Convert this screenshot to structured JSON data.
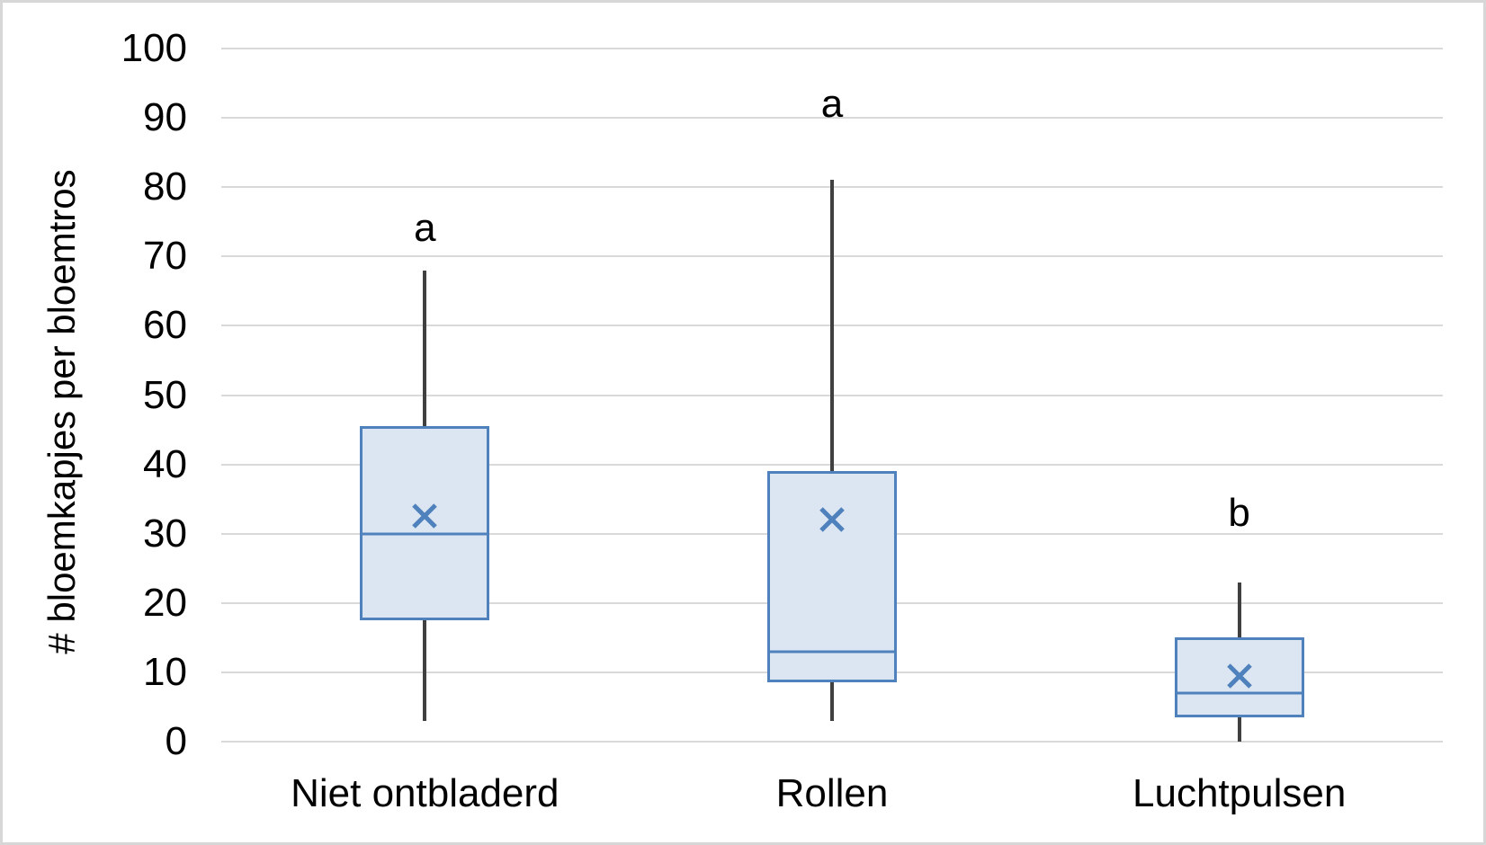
{
  "chart_data": {
    "type": "boxplot",
    "title": "",
    "xlabel": "",
    "ylabel": "# bloemkapjes per bloemtros",
    "ylim": [
      0,
      100
    ],
    "ytick_step": 10,
    "ytick_labels": [
      "0",
      "10",
      "20",
      "30",
      "40",
      "50",
      "60",
      "70",
      "80",
      "90",
      "100"
    ],
    "grid": true,
    "legend": false,
    "categories": [
      "Niet ontbladerd",
      "Rollen",
      "Luchtpulsen"
    ],
    "series": [
      {
        "category": "Niet ontbladerd",
        "min": 3,
        "q1": 17.5,
        "median": 30,
        "q3": 45.5,
        "max": 68,
        "mean": 32.5,
        "sig_label": "a",
        "sig_label_y": 74
      },
      {
        "category": "Rollen",
        "min": 3,
        "q1": 8.5,
        "median": 13,
        "q3": 39,
        "max": 81,
        "mean": 32,
        "sig_label": "a",
        "sig_label_y": 92
      },
      {
        "category": "Luchtpulsen",
        "min": 0,
        "q1": 3.5,
        "median": 7,
        "q3": 15,
        "max": 23,
        "mean": 9.5,
        "sig_label": "b",
        "sig_label_y": 33
      }
    ],
    "colors": {
      "box_fill": "#dce6f2",
      "box_border": "#4f81bd",
      "median_line": "#4f81bd",
      "mean_marker": "#4f81bd",
      "whisker": "#404040",
      "gridline": "#d9d9d9",
      "text": "#000000",
      "frame_border": "#d7d7d7",
      "background": "#ffffff"
    }
  }
}
